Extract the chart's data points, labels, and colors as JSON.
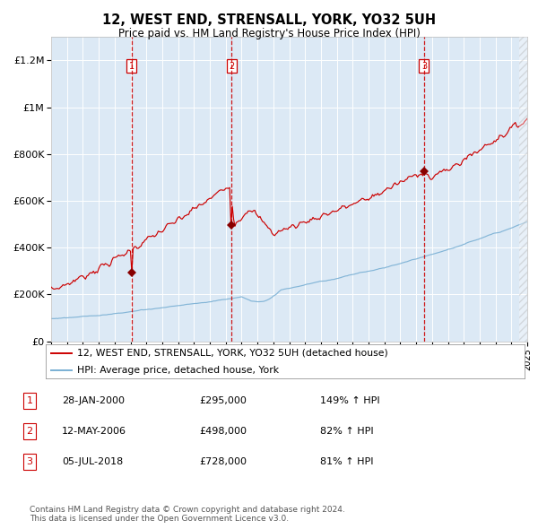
{
  "title": "12, WEST END, STRENSALL, YORK, YO32 5UH",
  "subtitle": "Price paid vs. HM Land Registry's House Price Index (HPI)",
  "x_start_year": 1995,
  "x_end_year": 2025,
  "y_min": 0,
  "y_max": 1300000,
  "y_ticks": [
    0,
    200000,
    400000,
    600000,
    800000,
    1000000,
    1200000
  ],
  "y_tick_labels": [
    "£0",
    "£200K",
    "£400K",
    "£600K",
    "£800K",
    "£1M",
    "£1.2M"
  ],
  "plot_bg_color": "#dce9f5",
  "hpi_line_color": "#7ab0d4",
  "price_line_color": "#cc0000",
  "sale_marker_color": "#880000",
  "dashed_line_color": "#cc0000",
  "grid_color": "#ffffff",
  "sale_points": [
    {
      "year": 2000.08,
      "price": 295000,
      "label": "1"
    },
    {
      "year": 2006.37,
      "price": 498000,
      "label": "2"
    },
    {
      "year": 2018.5,
      "price": 728000,
      "label": "3"
    }
  ],
  "legend_label_red": "12, WEST END, STRENSALL, YORK, YO32 5UH (detached house)",
  "legend_label_blue": "HPI: Average price, detached house, York",
  "table_rows": [
    {
      "num": "1",
      "date": "28-JAN-2000",
      "price": "£295,000",
      "hpi": "149% ↑ HPI"
    },
    {
      "num": "2",
      "date": "12-MAY-2006",
      "price": "£498,000",
      "hpi": "82% ↑ HPI"
    },
    {
      "num": "3",
      "date": "05-JUL-2018",
      "price": "£728,000",
      "hpi": "81% ↑ HPI"
    }
  ],
  "footer": "Contains HM Land Registry data © Crown copyright and database right 2024.\nThis data is licensed under the Open Government Licence v3.0."
}
